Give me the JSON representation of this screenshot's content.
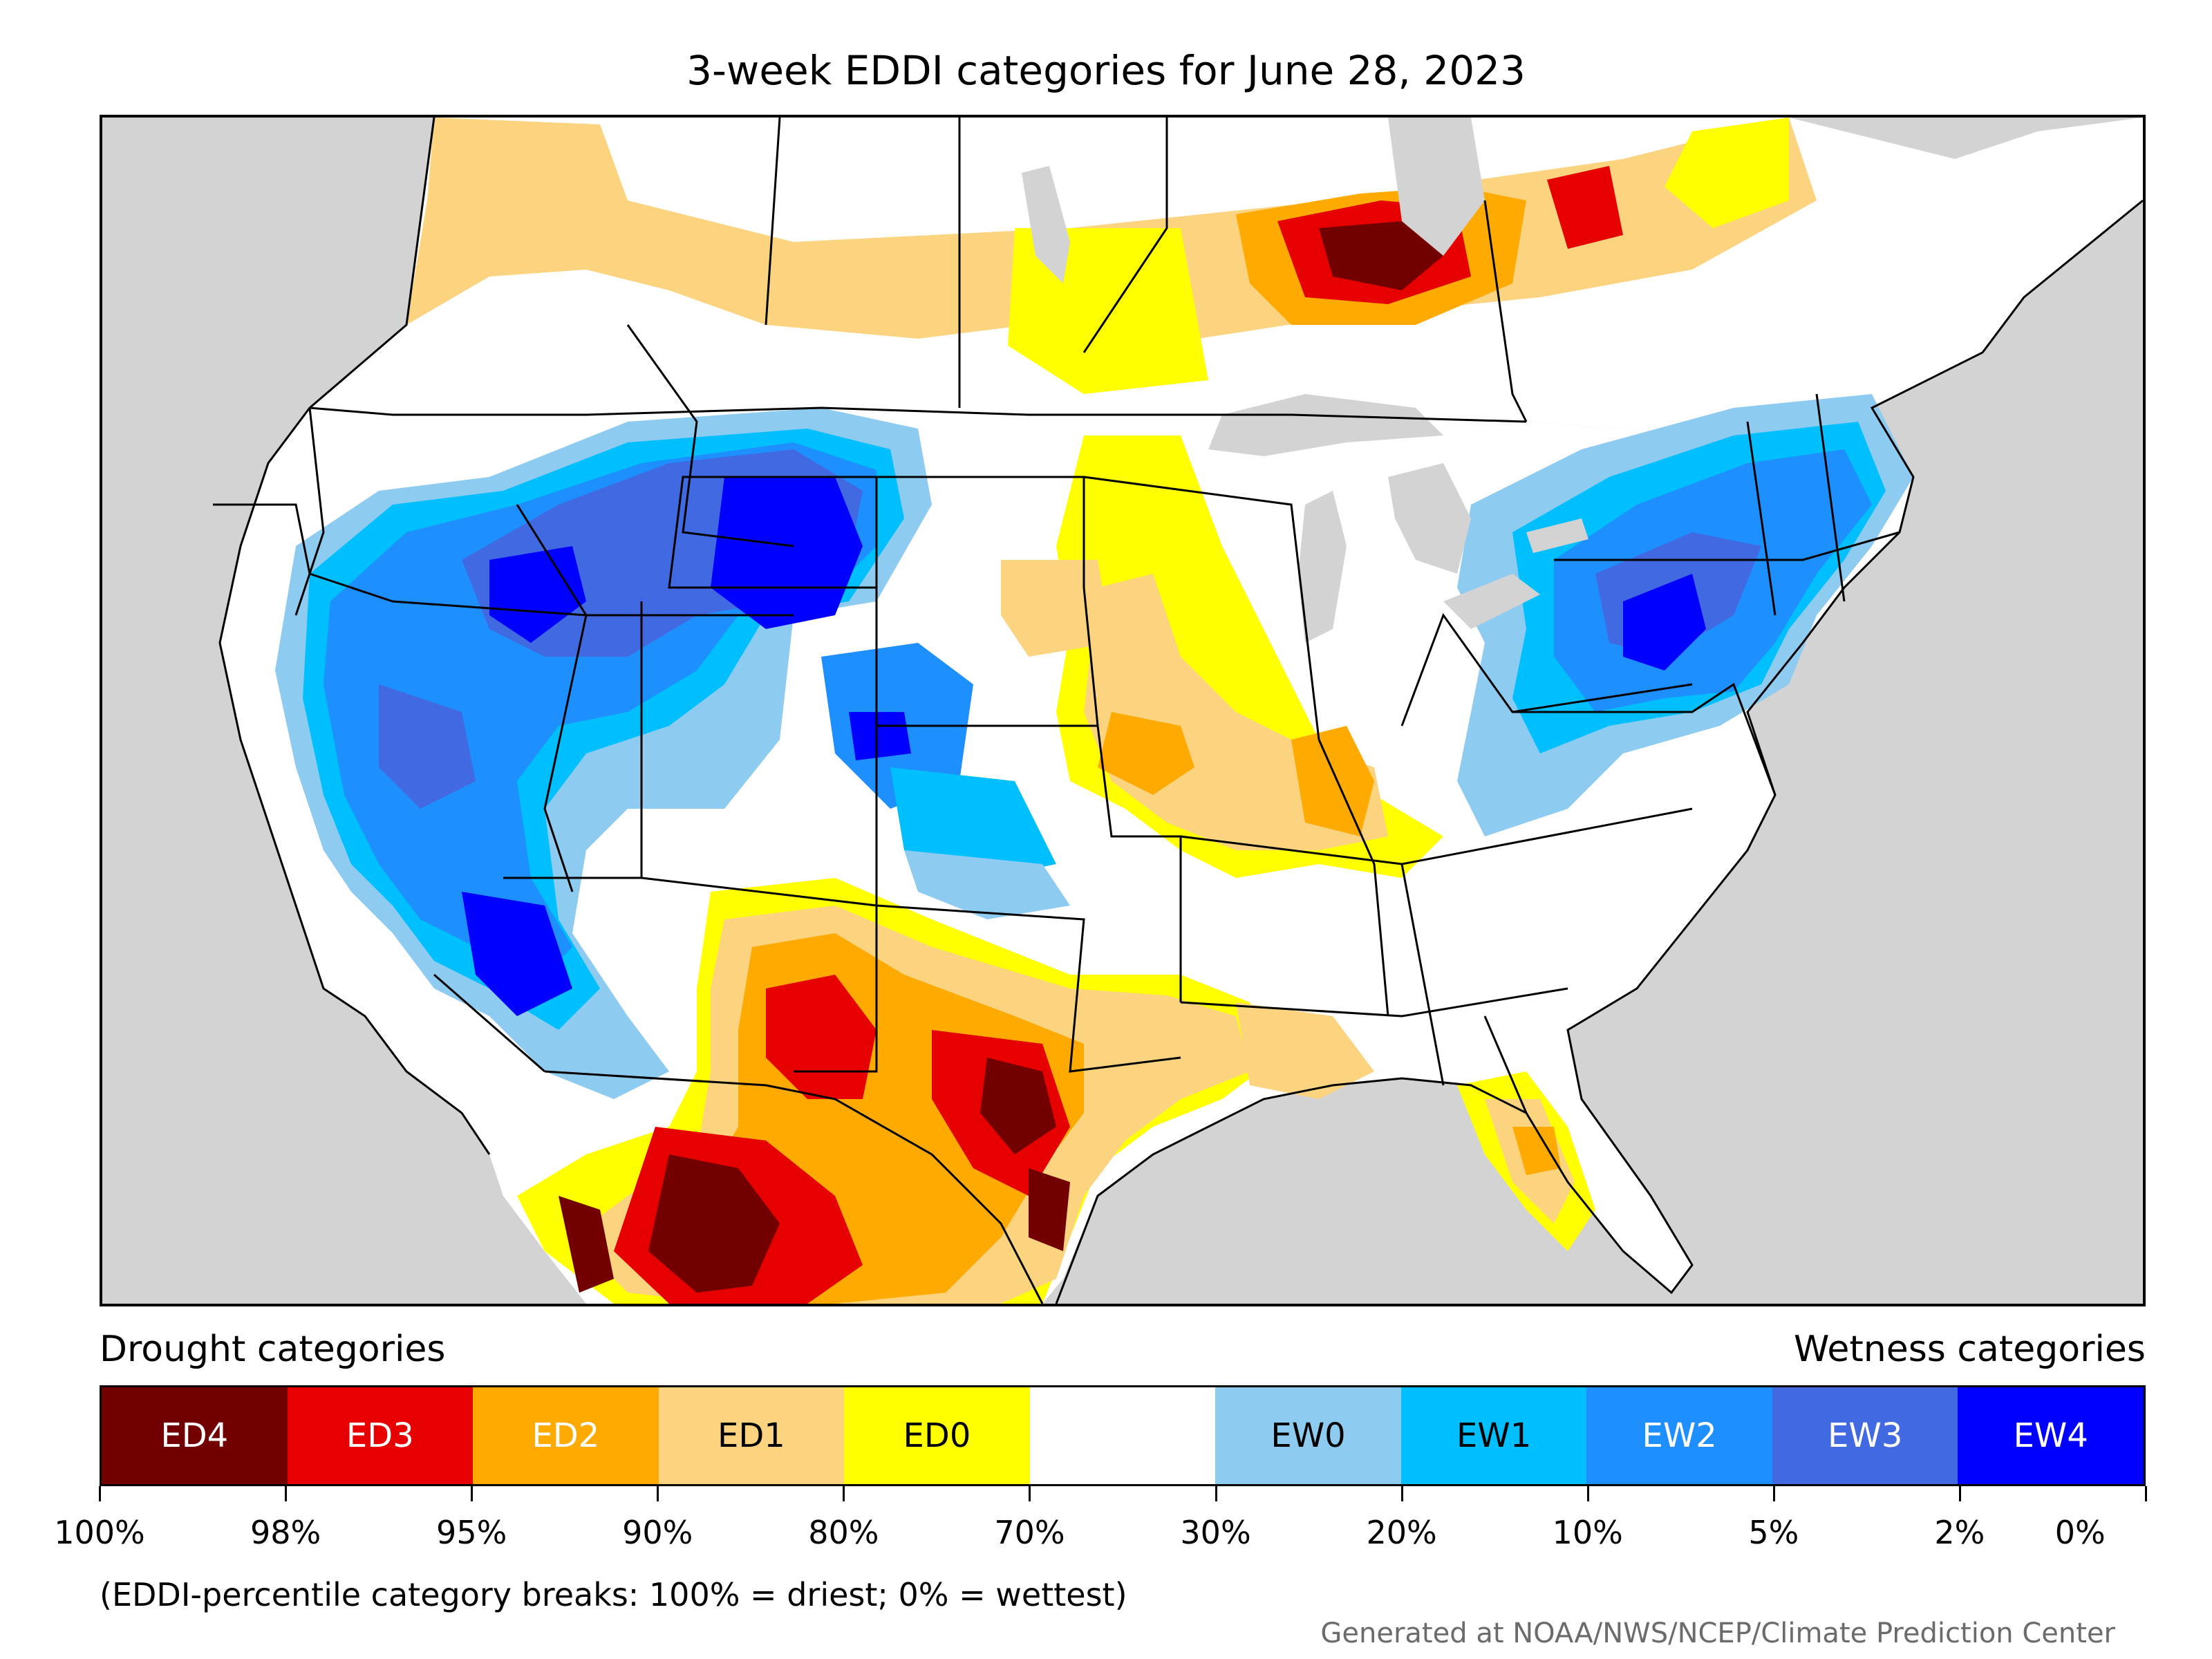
{
  "title": "3-week EDDI categories for June 28, 2023",
  "legend": {
    "drought_label": "Drought categories",
    "wetness_label": "Wetness categories",
    "categories": [
      {
        "name": "ED4",
        "color": "#730000",
        "text_color": "#ffffff"
      },
      {
        "name": "ED3",
        "color": "#e60000",
        "text_color": "#ffffff"
      },
      {
        "name": "ED2",
        "color": "#ffaa00",
        "text_color": "#ffffff"
      },
      {
        "name": "ED1",
        "color": "#fcd37f",
        "text_color": "#000000"
      },
      {
        "name": "ED0",
        "color": "#ffff00",
        "text_color": "#000000"
      },
      {
        "name": "",
        "color": "#ffffff",
        "text_color": "#000000"
      },
      {
        "name": "EW0",
        "color": "#8ecbf0",
        "text_color": "#000000"
      },
      {
        "name": "EW1",
        "color": "#00bfff",
        "text_color": "#000000"
      },
      {
        "name": "EW2",
        "color": "#1e8fff",
        "text_color": "#ffffff"
      },
      {
        "name": "EW3",
        "color": "#4169e1",
        "text_color": "#ffffff"
      },
      {
        "name": "EW4",
        "color": "#0000ff",
        "text_color": "#ffffff"
      }
    ],
    "breaks": [
      "100%",
      "98%",
      "95%",
      "90%",
      "80%",
      "70%",
      "30%",
      "20%",
      "10%",
      "5%",
      "2%",
      "0%"
    ]
  },
  "note": "(EDDI-percentile category breaks: 100% = driest; 0% = wettest)",
  "credit": "Generated at NOAA/NWS/NCEP/Climate Prediction Center",
  "map": {
    "ocean_color": "#d3d3d3",
    "land_color": "#ffffff",
    "border_color": "#000000"
  }
}
